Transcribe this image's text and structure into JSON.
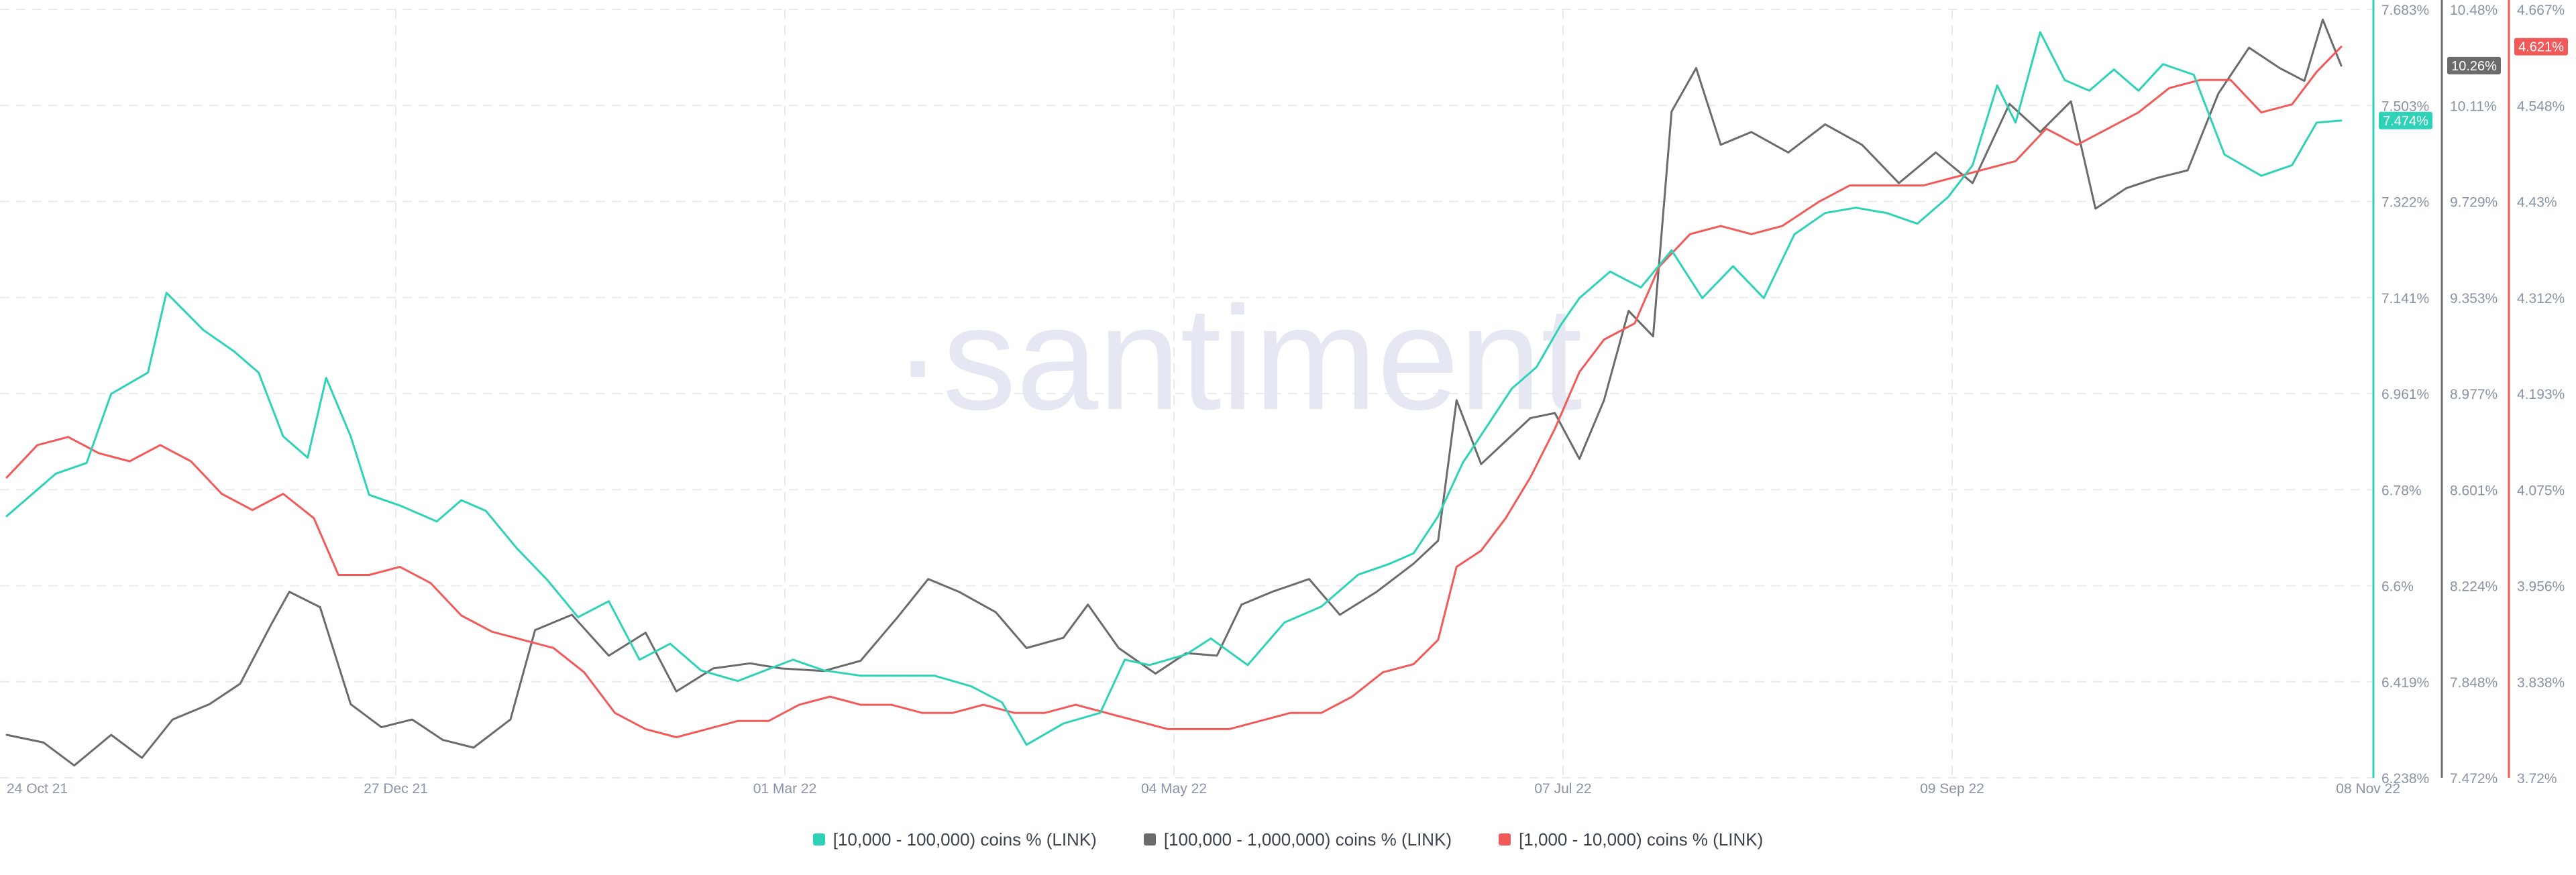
{
  "watermark": "·santiment",
  "colors": {
    "series_10k_100k": "#2ed3b7",
    "series_100k_1m": "#6b6b6b",
    "series_1k_10k": "#f25a5a",
    "grid": "#e9ebee",
    "axis_text": "#8a93a6"
  },
  "x_axis": {
    "labels": [
      "24 Oct 21",
      "27 Dec 21",
      "01 Mar 22",
      "04 May 22",
      "07 Jul 22",
      "09 Sep 22",
      "08 Nov 22"
    ]
  },
  "axes": {
    "teal": [
      "7.683%",
      "7.503%",
      "7.322%",
      "7.141%",
      "6.961%",
      "6.78%",
      "6.6%",
      "6.419%",
      "6.238%"
    ],
    "gray": [
      "10.48%",
      "10.11%",
      "9.729%",
      "9.353%",
      "8.977%",
      "8.601%",
      "8.224%",
      "7.848%",
      "7.472%"
    ],
    "red": [
      "4.667%",
      "4.548%",
      "4.43%",
      "4.312%",
      "4.193%",
      "4.075%",
      "3.956%",
      "3.838%",
      "3.72%"
    ]
  },
  "badges": {
    "teal": "7.474%",
    "gray": "10.26%",
    "red": "4.621%"
  },
  "legend": [
    {
      "label": "[10,000 - 100,000) coins % (LINK)",
      "color": "#2ed3b7"
    },
    {
      "label": "[100,000  - 1,000,000) coins % (LINK)",
      "color": "#6b6b6b"
    },
    {
      "label": "[1,000 - 10,000) coins % (LINK)",
      "color": "#f25a5a"
    }
  ],
  "chart_data": {
    "type": "line",
    "x_start": "2021-10-24",
    "x_end": "2022-11-08",
    "x_ticks": [
      "24 Oct 21",
      "27 Dec 21",
      "01 Mar 22",
      "04 May 22",
      "07 Jul 22",
      "09 Sep 22",
      "08 Nov 22"
    ],
    "grid": true,
    "legend_position": "bottom-center",
    "series": [
      {
        "name": "[10,000 - 100,000) coins % (LINK)",
        "axis": "teal",
        "ylim": [
          6.238,
          7.683
        ],
        "points": [
          [
            "2021-10-24",
            6.73
          ],
          [
            "2021-11-01",
            6.81
          ],
          [
            "2021-11-06",
            6.83
          ],
          [
            "2021-11-10",
            6.96
          ],
          [
            "2021-11-16",
            7.0
          ],
          [
            "2021-11-19",
            7.15
          ],
          [
            "2021-11-25",
            7.08
          ],
          [
            "2021-11-30",
            7.04
          ],
          [
            "2021-12-04",
            7.0
          ],
          [
            "2021-12-08",
            6.88
          ],
          [
            "2021-12-12",
            6.84
          ],
          [
            "2021-12-15",
            6.99
          ],
          [
            "2021-12-19",
            6.88
          ],
          [
            "2021-12-22",
            6.77
          ],
          [
            "2021-12-27",
            6.75
          ],
          [
            "2022-01-02",
            6.72
          ],
          [
            "2022-01-06",
            6.76
          ],
          [
            "2022-01-10",
            6.74
          ],
          [
            "2022-01-15",
            6.67
          ],
          [
            "2022-01-20",
            6.61
          ],
          [
            "2022-01-25",
            6.54
          ],
          [
            "2022-01-30",
            6.57
          ],
          [
            "2022-02-04",
            6.46
          ],
          [
            "2022-02-09",
            6.49
          ],
          [
            "2022-02-14",
            6.44
          ],
          [
            "2022-02-20",
            6.42
          ],
          [
            "2022-03-01",
            6.46
          ],
          [
            "2022-03-06",
            6.44
          ],
          [
            "2022-03-12",
            6.43
          ],
          [
            "2022-03-18",
            6.43
          ],
          [
            "2022-03-24",
            6.43
          ],
          [
            "2022-03-30",
            6.41
          ],
          [
            "2022-04-04",
            6.38
          ],
          [
            "2022-04-08",
            6.3
          ],
          [
            "2022-04-14",
            6.34
          ],
          [
            "2022-04-20",
            6.36
          ],
          [
            "2022-04-24",
            6.46
          ],
          [
            "2022-04-28",
            6.45
          ],
          [
            "2022-05-04",
            6.47
          ],
          [
            "2022-05-08",
            6.5
          ],
          [
            "2022-05-14",
            6.45
          ],
          [
            "2022-05-20",
            6.53
          ],
          [
            "2022-05-26",
            6.56
          ],
          [
            "2022-06-01",
            6.62
          ],
          [
            "2022-06-06",
            6.64
          ],
          [
            "2022-06-10",
            6.66
          ],
          [
            "2022-06-14",
            6.73
          ],
          [
            "2022-06-18",
            6.83
          ],
          [
            "2022-06-22",
            6.9
          ],
          [
            "2022-06-26",
            6.97
          ],
          [
            "2022-06-30",
            7.01
          ],
          [
            "2022-07-04",
            7.09
          ],
          [
            "2022-07-07",
            7.14
          ],
          [
            "2022-07-12",
            7.19
          ],
          [
            "2022-07-17",
            7.16
          ],
          [
            "2022-07-22",
            7.23
          ],
          [
            "2022-07-27",
            7.14
          ],
          [
            "2022-08-01",
            7.2
          ],
          [
            "2022-08-06",
            7.14
          ],
          [
            "2022-08-11",
            7.26
          ],
          [
            "2022-08-16",
            7.3
          ],
          [
            "2022-08-21",
            7.31
          ],
          [
            "2022-08-26",
            7.3
          ],
          [
            "2022-08-31",
            7.28
          ],
          [
            "2022-09-05",
            7.33
          ],
          [
            "2022-09-09",
            7.39
          ],
          [
            "2022-09-13",
            7.54
          ],
          [
            "2022-09-16",
            7.47
          ],
          [
            "2022-09-20",
            7.64
          ],
          [
            "2022-09-24",
            7.55
          ],
          [
            "2022-09-28",
            7.53
          ],
          [
            "2022-10-02",
            7.57
          ],
          [
            "2022-10-06",
            7.53
          ],
          [
            "2022-10-10",
            7.58
          ],
          [
            "2022-10-15",
            7.56
          ],
          [
            "2022-10-20",
            7.41
          ],
          [
            "2022-10-26",
            7.37
          ],
          [
            "2022-10-31",
            7.39
          ],
          [
            "2022-11-04",
            7.47
          ],
          [
            "2022-11-08",
            7.474
          ]
        ]
      },
      {
        "name": "[100,000  - 1,000,000) coins % (LINK)",
        "axis": "gray",
        "ylim": [
          7.472,
          10.48
        ],
        "points": [
          [
            "2021-10-24",
            7.64
          ],
          [
            "2021-10-30",
            7.61
          ],
          [
            "2021-11-04",
            7.52
          ],
          [
            "2021-11-10",
            7.64
          ],
          [
            "2021-11-15",
            7.55
          ],
          [
            "2021-11-20",
            7.7
          ],
          [
            "2021-11-26",
            7.76
          ],
          [
            "2021-12-01",
            7.84
          ],
          [
            "2021-12-06",
            8.07
          ],
          [
            "2021-12-09",
            8.2
          ],
          [
            "2021-12-14",
            8.14
          ],
          [
            "2021-12-19",
            7.76
          ],
          [
            "2021-12-24",
            7.67
          ],
          [
            "2021-12-29",
            7.7
          ],
          [
            "2022-01-03",
            7.62
          ],
          [
            "2022-01-08",
            7.59
          ],
          [
            "2022-01-14",
            7.7
          ],
          [
            "2022-01-18",
            8.05
          ],
          [
            "2022-01-24",
            8.11
          ],
          [
            "2022-01-30",
            7.95
          ],
          [
            "2022-02-05",
            8.04
          ],
          [
            "2022-02-10",
            7.81
          ],
          [
            "2022-02-16",
            7.9
          ],
          [
            "2022-02-22",
            7.92
          ],
          [
            "2022-02-27",
            7.9
          ],
          [
            "2022-03-06",
            7.89
          ],
          [
            "2022-03-12",
            7.93
          ],
          [
            "2022-03-18",
            8.1
          ],
          [
            "2022-03-23",
            8.25
          ],
          [
            "2022-03-28",
            8.2
          ],
          [
            "2022-04-03",
            8.12
          ],
          [
            "2022-04-08",
            7.98
          ],
          [
            "2022-04-14",
            8.02
          ],
          [
            "2022-04-18",
            8.15
          ],
          [
            "2022-04-23",
            7.98
          ],
          [
            "2022-04-29",
            7.88
          ],
          [
            "2022-05-04",
            7.96
          ],
          [
            "2022-05-09",
            7.95
          ],
          [
            "2022-05-13",
            8.15
          ],
          [
            "2022-05-18",
            8.2
          ],
          [
            "2022-05-24",
            8.25
          ],
          [
            "2022-05-29",
            8.11
          ],
          [
            "2022-06-04",
            8.2
          ],
          [
            "2022-06-10",
            8.31
          ],
          [
            "2022-06-14",
            8.4
          ],
          [
            "2022-06-17",
            8.95
          ],
          [
            "2022-06-21",
            8.7
          ],
          [
            "2022-06-25",
            8.79
          ],
          [
            "2022-06-29",
            8.88
          ],
          [
            "2022-07-03",
            8.9
          ],
          [
            "2022-07-07",
            8.72
          ],
          [
            "2022-07-11",
            8.95
          ],
          [
            "2022-07-15",
            9.3
          ],
          [
            "2022-07-19",
            9.2
          ],
          [
            "2022-07-22",
            10.08
          ],
          [
            "2022-07-26",
            10.25
          ],
          [
            "2022-07-30",
            9.95
          ],
          [
            "2022-08-04",
            10.0
          ],
          [
            "2022-08-10",
            9.92
          ],
          [
            "2022-08-16",
            10.03
          ],
          [
            "2022-08-22",
            9.95
          ],
          [
            "2022-08-28",
            9.8
          ],
          [
            "2022-09-03",
            9.92
          ],
          [
            "2022-09-09",
            9.8
          ],
          [
            "2022-09-15",
            10.11
          ],
          [
            "2022-09-20",
            10.0
          ],
          [
            "2022-09-25",
            10.12
          ],
          [
            "2022-09-29",
            9.7
          ],
          [
            "2022-10-04",
            9.78
          ],
          [
            "2022-10-09",
            9.82
          ],
          [
            "2022-10-14",
            9.85
          ],
          [
            "2022-10-19",
            10.15
          ],
          [
            "2022-10-24",
            10.33
          ],
          [
            "2022-10-29",
            10.25
          ],
          [
            "2022-11-02",
            10.2
          ],
          [
            "2022-11-05",
            10.44
          ],
          [
            "2022-11-08",
            10.26
          ]
        ]
      },
      {
        "name": "[1,000 - 10,000) coins % (LINK)",
        "axis": "red",
        "ylim": [
          3.72,
          4.667
        ],
        "points": [
          [
            "2021-10-24",
            4.09
          ],
          [
            "2021-10-29",
            4.13
          ],
          [
            "2021-11-03",
            4.14
          ],
          [
            "2021-11-08",
            4.12
          ],
          [
            "2021-11-13",
            4.11
          ],
          [
            "2021-11-18",
            4.13
          ],
          [
            "2021-11-23",
            4.11
          ],
          [
            "2021-11-28",
            4.07
          ],
          [
            "2021-12-03",
            4.05
          ],
          [
            "2021-12-08",
            4.07
          ],
          [
            "2021-12-13",
            4.04
          ],
          [
            "2021-12-17",
            3.97
          ],
          [
            "2021-12-22",
            3.97
          ],
          [
            "2021-12-27",
            3.98
          ],
          [
            "2022-01-01",
            3.96
          ],
          [
            "2022-01-06",
            3.92
          ],
          [
            "2022-01-11",
            3.9
          ],
          [
            "2022-01-16",
            3.89
          ],
          [
            "2022-01-21",
            3.88
          ],
          [
            "2022-01-26",
            3.85
          ],
          [
            "2022-01-31",
            3.8
          ],
          [
            "2022-02-05",
            3.78
          ],
          [
            "2022-02-10",
            3.77
          ],
          [
            "2022-02-15",
            3.78
          ],
          [
            "2022-02-20",
            3.79
          ],
          [
            "2022-02-25",
            3.79
          ],
          [
            "2022-03-02",
            3.81
          ],
          [
            "2022-03-07",
            3.82
          ],
          [
            "2022-03-12",
            3.81
          ],
          [
            "2022-03-17",
            3.81
          ],
          [
            "2022-03-22",
            3.8
          ],
          [
            "2022-03-27",
            3.8
          ],
          [
            "2022-04-01",
            3.81
          ],
          [
            "2022-04-06",
            3.8
          ],
          [
            "2022-04-11",
            3.8
          ],
          [
            "2022-04-16",
            3.81
          ],
          [
            "2022-04-21",
            3.8
          ],
          [
            "2022-04-26",
            3.79
          ],
          [
            "2022-05-01",
            3.78
          ],
          [
            "2022-05-06",
            3.78
          ],
          [
            "2022-05-11",
            3.78
          ],
          [
            "2022-05-16",
            3.79
          ],
          [
            "2022-05-21",
            3.8
          ],
          [
            "2022-05-26",
            3.8
          ],
          [
            "2022-05-31",
            3.82
          ],
          [
            "2022-06-05",
            3.85
          ],
          [
            "2022-06-10",
            3.86
          ],
          [
            "2022-06-14",
            3.89
          ],
          [
            "2022-06-17",
            3.98
          ],
          [
            "2022-06-21",
            4.0
          ],
          [
            "2022-06-25",
            4.04
          ],
          [
            "2022-06-29",
            4.09
          ],
          [
            "2022-07-03",
            4.15
          ],
          [
            "2022-07-07",
            4.22
          ],
          [
            "2022-07-11",
            4.26
          ],
          [
            "2022-07-16",
            4.28
          ],
          [
            "2022-07-20",
            4.35
          ],
          [
            "2022-07-25",
            4.39
          ],
          [
            "2022-07-30",
            4.4
          ],
          [
            "2022-08-04",
            4.39
          ],
          [
            "2022-08-09",
            4.4
          ],
          [
            "2022-08-15",
            4.43
          ],
          [
            "2022-08-20",
            4.45
          ],
          [
            "2022-08-26",
            4.45
          ],
          [
            "2022-09-01",
            4.45
          ],
          [
            "2022-09-06",
            4.46
          ],
          [
            "2022-09-11",
            4.47
          ],
          [
            "2022-09-16",
            4.48
          ],
          [
            "2022-09-21",
            4.52
          ],
          [
            "2022-09-26",
            4.5
          ],
          [
            "2022-10-01",
            4.52
          ],
          [
            "2022-10-06",
            4.54
          ],
          [
            "2022-10-11",
            4.57
          ],
          [
            "2022-10-16",
            4.58
          ],
          [
            "2022-10-21",
            4.58
          ],
          [
            "2022-10-26",
            4.54
          ],
          [
            "2022-10-31",
            4.55
          ],
          [
            "2022-11-04",
            4.59
          ],
          [
            "2022-11-08",
            4.621
          ]
        ]
      }
    ]
  }
}
